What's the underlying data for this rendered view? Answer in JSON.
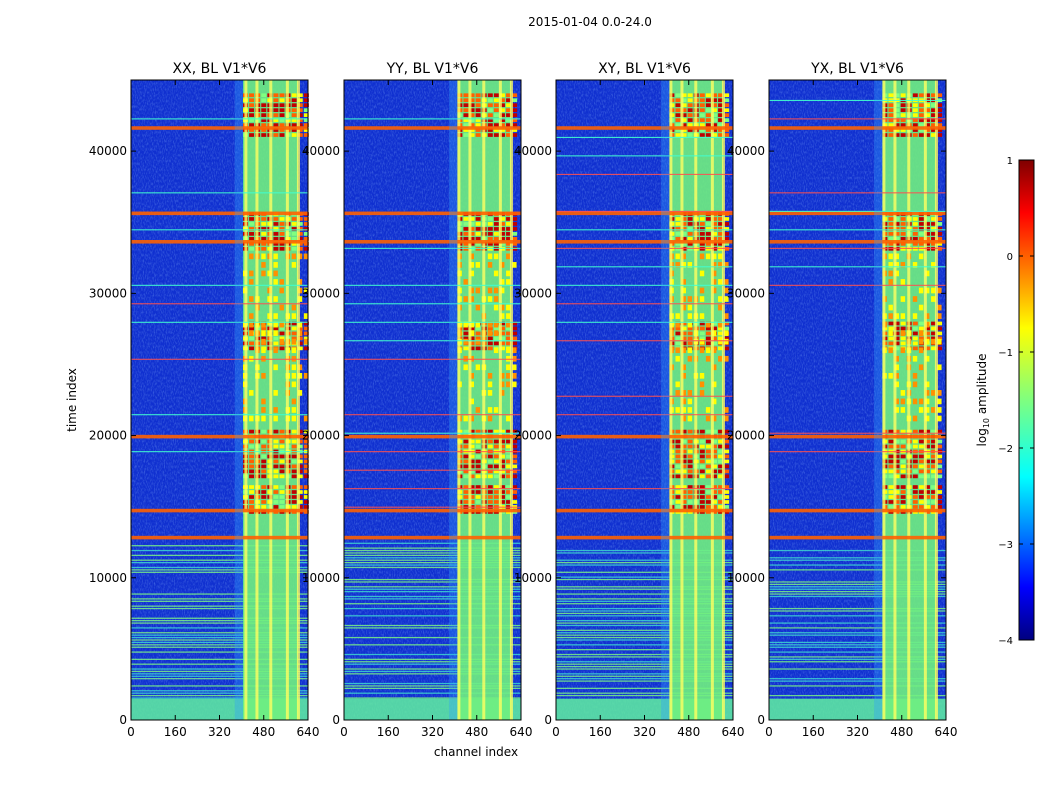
{
  "figure": {
    "suptitle": "2015-01-04 0.0-24.0",
    "xlabel": "channel index",
    "ylabel": "time index",
    "colorbar_label_html": "log₁₀ amplitude",
    "colorbar_label_prefix": "log",
    "colorbar_label_sub": "10",
    "colorbar_label_suffix": " amplitude"
  },
  "chart_data": {
    "type": "heatmap",
    "colormap": "jet",
    "x_range": [
      0,
      640
    ],
    "y_range": [
      0,
      45000
    ],
    "x_ticks": [
      0,
      160,
      320,
      480,
      640
    ],
    "y_ticks": [
      0,
      10000,
      20000,
      30000,
      40000
    ],
    "panels": [
      {
        "title": "XX, BL V1*V6",
        "pol": "XX"
      },
      {
        "title": "YY, BL V1*V6",
        "pol": "YY"
      },
      {
        "title": "XY, BL V1*V6",
        "pol": "XY"
      },
      {
        "title": "YX, BL V1*V6",
        "pol": "YX"
      }
    ],
    "colorbar": {
      "range": [
        -4,
        1
      ],
      "ticks": [
        1,
        0,
        -1,
        -2,
        -3,
        -4
      ],
      "tick_labels": [
        "1",
        "0",
        "−1",
        "−2",
        "−3",
        "−4"
      ]
    },
    "band_channels": {
      "low_activity_channels": [
        0,
        400
      ],
      "strong_rfi_channels": [
        400,
        640
      ],
      "bright_columns": [
        410,
        450,
        500,
        560,
        600
      ]
    },
    "bright_time_rows": [
      12700,
      14600,
      19800,
      33500,
      35500,
      41500
    ],
    "colors": {
      "background_low": "#1030d0",
      "high": "#c00000",
      "mid": "#ffff00"
    }
  }
}
